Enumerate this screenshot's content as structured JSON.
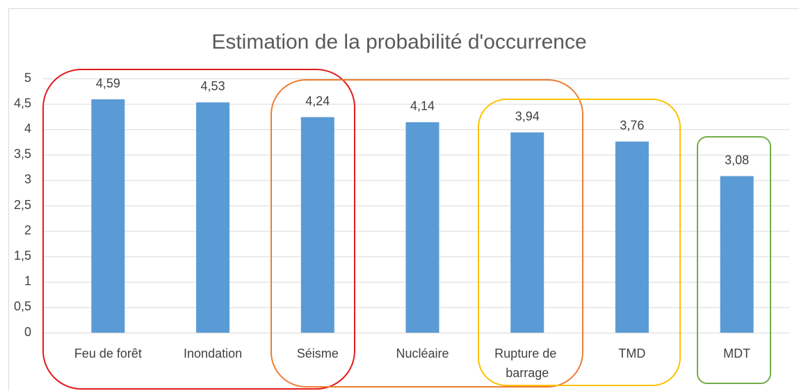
{
  "chart_data": {
    "type": "bar",
    "title": "Estimation de la probabilité d'occurrence",
    "categories": [
      "Feu de forêt",
      "Inondation",
      "Séisme",
      "Nucléaire",
      "Rupture de barrage",
      "TMD",
      "MDT"
    ],
    "values": [
      4.59,
      4.53,
      4.24,
      4.14,
      3.94,
      3.76,
      3.08
    ],
    "value_labels": [
      "4,59",
      "4,53",
      "4,24",
      "4,14",
      "3,94",
      "3,76",
      "3,08"
    ],
    "color": "#5b9bd5",
    "ylim": [
      0,
      5
    ],
    "yticks": [
      0,
      {
        "value": 0.5,
        "label": "0,5"
      },
      1,
      {
        "value": 1.5,
        "label": "1,5"
      },
      2,
      {
        "value": 2.5,
        "label": "2,5"
      },
      3,
      {
        "value": 3.5,
        "label": "3,5"
      },
      4,
      {
        "value": 4.5,
        "label": "4,5"
      },
      5
    ],
    "grid": true
  }
}
